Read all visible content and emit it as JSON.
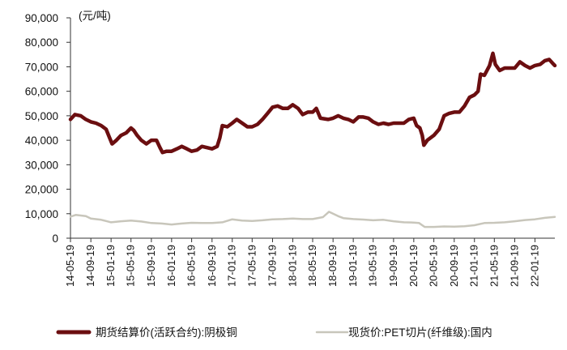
{
  "chart_data": {
    "type": "line",
    "unit_label": "(元/吨)",
    "ylim": [
      0,
      90000
    ],
    "yticks": [
      0,
      10000,
      20000,
      30000,
      40000,
      50000,
      60000,
      70000,
      80000,
      90000
    ],
    "ytick_labels": [
      "0",
      "10,000",
      "20,000",
      "30,000",
      "40,000",
      "50,000",
      "60,000",
      "70,000",
      "80,000",
      "90,000"
    ],
    "xlim": [
      "2014-05-19",
      "2022-05-19"
    ],
    "x_tick_labels": [
      "14-05-19",
      "14-09-19",
      "15-01-19",
      "15-05-19",
      "15-09-19",
      "16-01-19",
      "16-05-19",
      "16-09-19",
      "17-01-19",
      "17-05-19",
      "17-09-19",
      "18-01-19",
      "18-05-19",
      "18-09-19",
      "19-01-19",
      "19-05-19",
      "19-09-19",
      "20-01-19",
      "20-05-19",
      "20-09-19",
      "21-01-19",
      "21-05-19",
      "21-09-19",
      "22-01-19"
    ],
    "grid": false,
    "legend_position": "bottom",
    "series": [
      {
        "name": "期货结算价(活跃合约):阴极铜",
        "color": "#6b0e10",
        "points": [
          [
            "2014-05-19",
            48500
          ],
          [
            "2014-06-15",
            50500
          ],
          [
            "2014-07-20",
            50000
          ],
          [
            "2014-08-20",
            48500
          ],
          [
            "2014-09-19",
            47500
          ],
          [
            "2014-10-20",
            47000
          ],
          [
            "2014-11-20",
            46000
          ],
          [
            "2014-12-20",
            44500
          ],
          [
            "2015-01-10",
            41000
          ],
          [
            "2015-01-25",
            38500
          ],
          [
            "2015-02-20",
            40000
          ],
          [
            "2015-03-20",
            42000
          ],
          [
            "2015-04-20",
            43000
          ],
          [
            "2015-05-19",
            45000
          ],
          [
            "2015-06-05",
            44000
          ],
          [
            "2015-06-25",
            42000
          ],
          [
            "2015-07-20",
            40000
          ],
          [
            "2015-08-20",
            38500
          ],
          [
            "2015-09-19",
            40000
          ],
          [
            "2015-10-20",
            40000
          ],
          [
            "2015-11-10",
            37000
          ],
          [
            "2015-11-25",
            35000
          ],
          [
            "2015-12-20",
            35500
          ],
          [
            "2016-01-19",
            35500
          ],
          [
            "2016-02-20",
            36500
          ],
          [
            "2016-03-20",
            37500
          ],
          [
            "2016-04-20",
            36500
          ],
          [
            "2016-05-19",
            35500
          ],
          [
            "2016-06-20",
            36000
          ],
          [
            "2016-07-20",
            37500
          ],
          [
            "2016-08-20",
            37000
          ],
          [
            "2016-09-19",
            36500
          ],
          [
            "2016-10-20",
            37500
          ],
          [
            "2016-11-05",
            41000
          ],
          [
            "2016-11-20",
            46000
          ],
          [
            "2016-12-20",
            45500
          ],
          [
            "2017-01-19",
            47000
          ],
          [
            "2017-02-15",
            48500
          ],
          [
            "2017-03-20",
            47000
          ],
          [
            "2017-04-20",
            45500
          ],
          [
            "2017-05-19",
            45500
          ],
          [
            "2017-06-20",
            46500
          ],
          [
            "2017-07-20",
            48500
          ],
          [
            "2017-08-20",
            51000
          ],
          [
            "2017-09-19",
            53500
          ],
          [
            "2017-10-20",
            54000
          ],
          [
            "2017-11-20",
            53000
          ],
          [
            "2017-12-20",
            53000
          ],
          [
            "2018-01-19",
            54500
          ],
          [
            "2018-02-20",
            53000
          ],
          [
            "2018-03-20",
            50500
          ],
          [
            "2018-04-20",
            51500
          ],
          [
            "2018-05-19",
            51500
          ],
          [
            "2018-06-10",
            53000
          ],
          [
            "2018-07-05",
            49000
          ],
          [
            "2018-08-20",
            48500
          ],
          [
            "2018-09-19",
            49000
          ],
          [
            "2018-10-20",
            50000
          ],
          [
            "2018-11-20",
            49000
          ],
          [
            "2018-12-20",
            48500
          ],
          [
            "2019-01-19",
            47500
          ],
          [
            "2019-02-20",
            49500
          ],
          [
            "2019-03-20",
            49500
          ],
          [
            "2019-04-20",
            49000
          ],
          [
            "2019-05-19",
            47500
          ],
          [
            "2019-06-20",
            46500
          ],
          [
            "2019-07-20",
            47000
          ],
          [
            "2019-08-20",
            46500
          ],
          [
            "2019-09-19",
            47000
          ],
          [
            "2019-10-20",
            47000
          ],
          [
            "2019-11-20",
            47000
          ],
          [
            "2019-12-20",
            48500
          ],
          [
            "2020-01-19",
            49000
          ],
          [
            "2020-02-05",
            46000
          ],
          [
            "2020-02-25",
            45000
          ],
          [
            "2020-03-10",
            42000
          ],
          [
            "2020-03-20",
            38000
          ],
          [
            "2020-04-10",
            40000
          ],
          [
            "2020-05-19",
            42000
          ],
          [
            "2020-06-20",
            44500
          ],
          [
            "2020-07-20",
            50000
          ],
          [
            "2020-08-20",
            51000
          ],
          [
            "2020-09-19",
            51500
          ],
          [
            "2020-10-20",
            51500
          ],
          [
            "2020-11-20",
            54000
          ],
          [
            "2020-12-20",
            57500
          ],
          [
            "2021-01-19",
            58500
          ],
          [
            "2021-02-10",
            60000
          ],
          [
            "2021-02-25",
            67000
          ],
          [
            "2021-03-20",
            66500
          ],
          [
            "2021-04-20",
            70500
          ],
          [
            "2021-05-10",
            75500
          ],
          [
            "2021-05-25",
            71000
          ],
          [
            "2021-06-20",
            68500
          ],
          [
            "2021-07-20",
            69500
          ],
          [
            "2021-08-20",
            69500
          ],
          [
            "2021-09-19",
            69500
          ],
          [
            "2021-10-20",
            72000
          ],
          [
            "2021-11-20",
            70500
          ],
          [
            "2021-12-20",
            69500
          ],
          [
            "2022-01-19",
            70500
          ],
          [
            "2022-02-20",
            71000
          ],
          [
            "2022-03-20",
            72500
          ],
          [
            "2022-04-15",
            73000
          ],
          [
            "2022-05-05",
            71500
          ],
          [
            "2022-05-19",
            70500
          ]
        ]
      },
      {
        "name": "现货价:PET切片(纤维级):国内",
        "color": "#c8c6bb",
        "points": [
          [
            "2014-05-19",
            8800
          ],
          [
            "2014-06-20",
            9500
          ],
          [
            "2014-08-20",
            9000
          ],
          [
            "2014-09-19",
            8000
          ],
          [
            "2014-11-20",
            7500
          ],
          [
            "2014-12-20",
            7000
          ],
          [
            "2015-01-19",
            6500
          ],
          [
            "2015-03-20",
            6900
          ],
          [
            "2015-05-19",
            7200
          ],
          [
            "2015-07-20",
            6800
          ],
          [
            "2015-09-19",
            6200
          ],
          [
            "2015-11-20",
            6000
          ],
          [
            "2016-01-19",
            5600
          ],
          [
            "2016-03-20",
            6000
          ],
          [
            "2016-05-19",
            6300
          ],
          [
            "2016-07-20",
            6200
          ],
          [
            "2016-09-19",
            6200
          ],
          [
            "2016-11-20",
            6500
          ],
          [
            "2017-01-19",
            7700
          ],
          [
            "2017-03-20",
            7200
          ],
          [
            "2017-05-19",
            7000
          ],
          [
            "2017-07-20",
            7300
          ],
          [
            "2017-09-19",
            7700
          ],
          [
            "2017-11-20",
            7800
          ],
          [
            "2018-01-19",
            8000
          ],
          [
            "2018-03-20",
            7800
          ],
          [
            "2018-05-19",
            7800
          ],
          [
            "2018-07-20",
            8600
          ],
          [
            "2018-08-25",
            10800
          ],
          [
            "2018-09-19",
            10000
          ],
          [
            "2018-10-20",
            9000
          ],
          [
            "2018-11-20",
            8200
          ],
          [
            "2019-01-19",
            7800
          ],
          [
            "2019-03-20",
            7600
          ],
          [
            "2019-05-19",
            7300
          ],
          [
            "2019-07-20",
            7500
          ],
          [
            "2019-09-19",
            6900
          ],
          [
            "2019-11-20",
            6500
          ],
          [
            "2020-01-19",
            6400
          ],
          [
            "2020-02-20",
            6200
          ],
          [
            "2020-03-25",
            4600
          ],
          [
            "2020-05-19",
            4600
          ],
          [
            "2020-07-20",
            4800
          ],
          [
            "2020-09-19",
            4700
          ],
          [
            "2020-11-20",
            4900
          ],
          [
            "2021-01-19",
            5300
          ],
          [
            "2021-03-20",
            6200
          ],
          [
            "2021-05-19",
            6300
          ],
          [
            "2021-07-20",
            6500
          ],
          [
            "2021-09-19",
            6900
          ],
          [
            "2021-11-20",
            7400
          ],
          [
            "2022-01-19",
            7700
          ],
          [
            "2022-03-20",
            8300
          ],
          [
            "2022-05-19",
            8700
          ]
        ]
      }
    ]
  }
}
